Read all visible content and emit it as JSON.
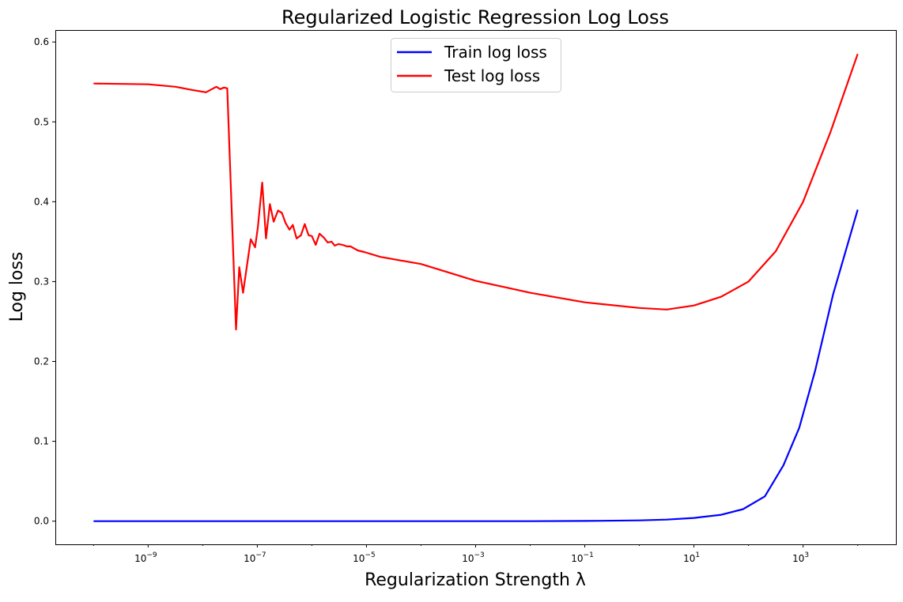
{
  "chart_data": {
    "type": "line",
    "title": "Regularized Logistic Regression Log Loss",
    "xlabel": "Regularization Strength λ",
    "ylabel": "Log loss",
    "xscale": "log",
    "xlim_log10": [
      -10.7,
      4.7
    ],
    "ylim": [
      -0.029,
      0.615
    ],
    "yticks": [
      0.0,
      0.1,
      0.2,
      0.3,
      0.4,
      0.5,
      0.6
    ],
    "ytick_labels": [
      "0.0",
      "0.1",
      "0.2",
      "0.3",
      "0.4",
      "0.5",
      "0.6"
    ],
    "xticks_log10": [
      -9,
      -7,
      -5,
      -3,
      -1,
      1,
      3
    ],
    "xtick_labels": [
      {
        "base": "10",
        "exp": "−9"
      },
      {
        "base": "10",
        "exp": "−7"
      },
      {
        "base": "10",
        "exp": "−5"
      },
      {
        "base": "10",
        "exp": "−3"
      },
      {
        "base": "10",
        "exp": "−1"
      },
      {
        "base": "10",
        "exp": "1"
      },
      {
        "base": "10",
        "exp": "3"
      }
    ],
    "minor_xticks_log10": [
      -10,
      -8,
      -6,
      -4,
      -2,
      0,
      2,
      4
    ],
    "grid": false,
    "legend": {
      "placement": "top-center",
      "entries": [
        "Train log loss",
        "Test log loss"
      ]
    },
    "series": [
      {
        "name": "Train log loss",
        "color": "#0000ff",
        "x_log10": [
          -10,
          -8,
          -6,
          -4,
          -2,
          -1,
          0,
          0.5,
          1,
          1.5,
          1.9,
          2.3,
          2.64,
          2.93,
          3.22,
          3.55,
          4
        ],
        "values": [
          0.0,
          0.0,
          0.0,
          0.0,
          0.0,
          0.0003,
          0.001,
          0.002,
          0.004,
          0.008,
          0.015,
          0.031,
          0.07,
          0.117,
          0.188,
          0.284,
          0.39
        ]
      },
      {
        "name": "Test log loss",
        "color": "#ff0000",
        "x_log10": [
          -10,
          -9,
          -8.5,
          -8.2,
          -7.94,
          -7.75,
          -7.68,
          -7.61,
          -7.55,
          -7.39,
          -7.33,
          -7.26,
          -7.12,
          -7.04,
          -6.99,
          -6.91,
          -6.84,
          -6.77,
          -6.7,
          -6.62,
          -6.55,
          -6.48,
          -6.41,
          -6.35,
          -6.28,
          -6.2,
          -6.13,
          -6.06,
          -6.0,
          -5.93,
          -5.86,
          -5.78,
          -5.71,
          -5.64,
          -5.58,
          -5.51,
          -5.44,
          -5.36,
          -5.29,
          -5.16,
          -5.04,
          -4.75,
          -4,
          -3,
          -2,
          -1,
          0,
          0.5,
          1,
          1.5,
          2,
          2.5,
          3,
          3.5,
          4
        ],
        "values": [
          0.548,
          0.547,
          0.544,
          0.54,
          0.537,
          0.544,
          0.541,
          0.543,
          0.542,
          0.24,
          0.318,
          0.286,
          0.353,
          0.343,
          0.368,
          0.424,
          0.354,
          0.397,
          0.375,
          0.389,
          0.386,
          0.373,
          0.365,
          0.371,
          0.354,
          0.358,
          0.372,
          0.358,
          0.357,
          0.346,
          0.36,
          0.355,
          0.349,
          0.35,
          0.345,
          0.347,
          0.346,
          0.344,
          0.344,
          0.339,
          0.337,
          0.331,
          0.322,
          0.301,
          0.286,
          0.274,
          0.267,
          0.265,
          0.27,
          0.281,
          0.3,
          0.338,
          0.4,
          0.487,
          0.585
        ]
      }
    ]
  }
}
